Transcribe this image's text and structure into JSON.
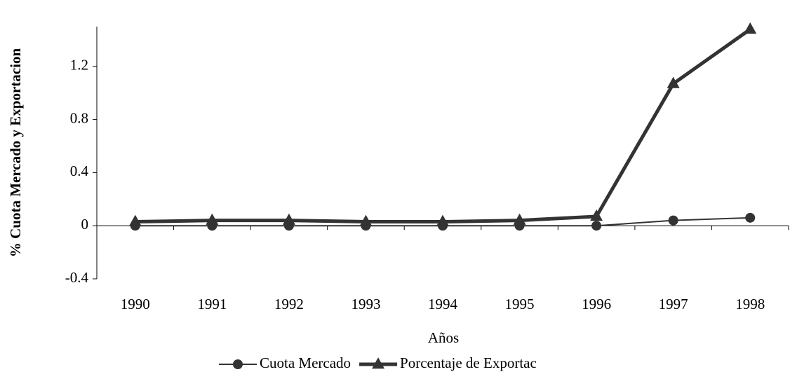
{
  "chart_data": {
    "type": "line",
    "x_label": "Años",
    "y_label": "% Cuota Mercado y Exportacion",
    "categories": [
      "1990",
      "1991",
      "1992",
      "1993",
      "1994",
      "1995",
      "1996",
      "1997",
      "1998"
    ],
    "series": [
      {
        "name": "Cuota Mercado",
        "color": "#333333",
        "marker": "circle",
        "values": [
          0,
          0,
          0,
          0,
          0,
          0,
          0,
          0.04,
          0.06
        ]
      },
      {
        "name": "Porcentaje de Exportac",
        "color": "#333333",
        "marker": "triangle",
        "values": [
          0.03,
          0.04,
          0.04,
          0.03,
          0.03,
          0.04,
          0.07,
          1.07,
          1.48
        ]
      }
    ],
    "ylim": [
      -0.4,
      1.5
    ],
    "yticks": [
      -0.4,
      0,
      0.4,
      0.8,
      1.2
    ]
  }
}
